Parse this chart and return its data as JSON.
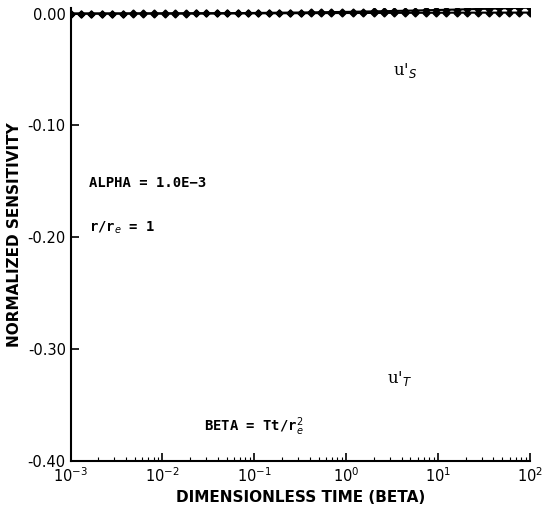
{
  "xlim_log": [
    -3,
    2
  ],
  "ylim": [
    -0.4,
    0.005
  ],
  "xlabel": "DIMENSIONLESS TIME (BETA)",
  "ylabel": "NORMALIZED SENSITIVITY",
  "annotation1": "ALPHA = 1.0E−3",
  "annotation2_main": "r/r",
  "annotation2_sub": "e",
  "annotation2_end": " = 1",
  "annotation3_main": "BETA = Tt/r",
  "annotation3_sub": "e",
  "annotation3_sup": "2",
  "ytick_labels": [
    "0.00",
    "-0.10",
    "-0.20",
    "-0.30",
    "-0.40"
  ],
  "ytick_vals": [
    0.0,
    -0.1,
    -0.2,
    -0.3,
    -0.4
  ],
  "background_color": "#ffffff",
  "line_color": "#000000",
  "markersize": 3.5,
  "alpha_param": 0.001,
  "n_points": 600,
  "n_markers": 45
}
